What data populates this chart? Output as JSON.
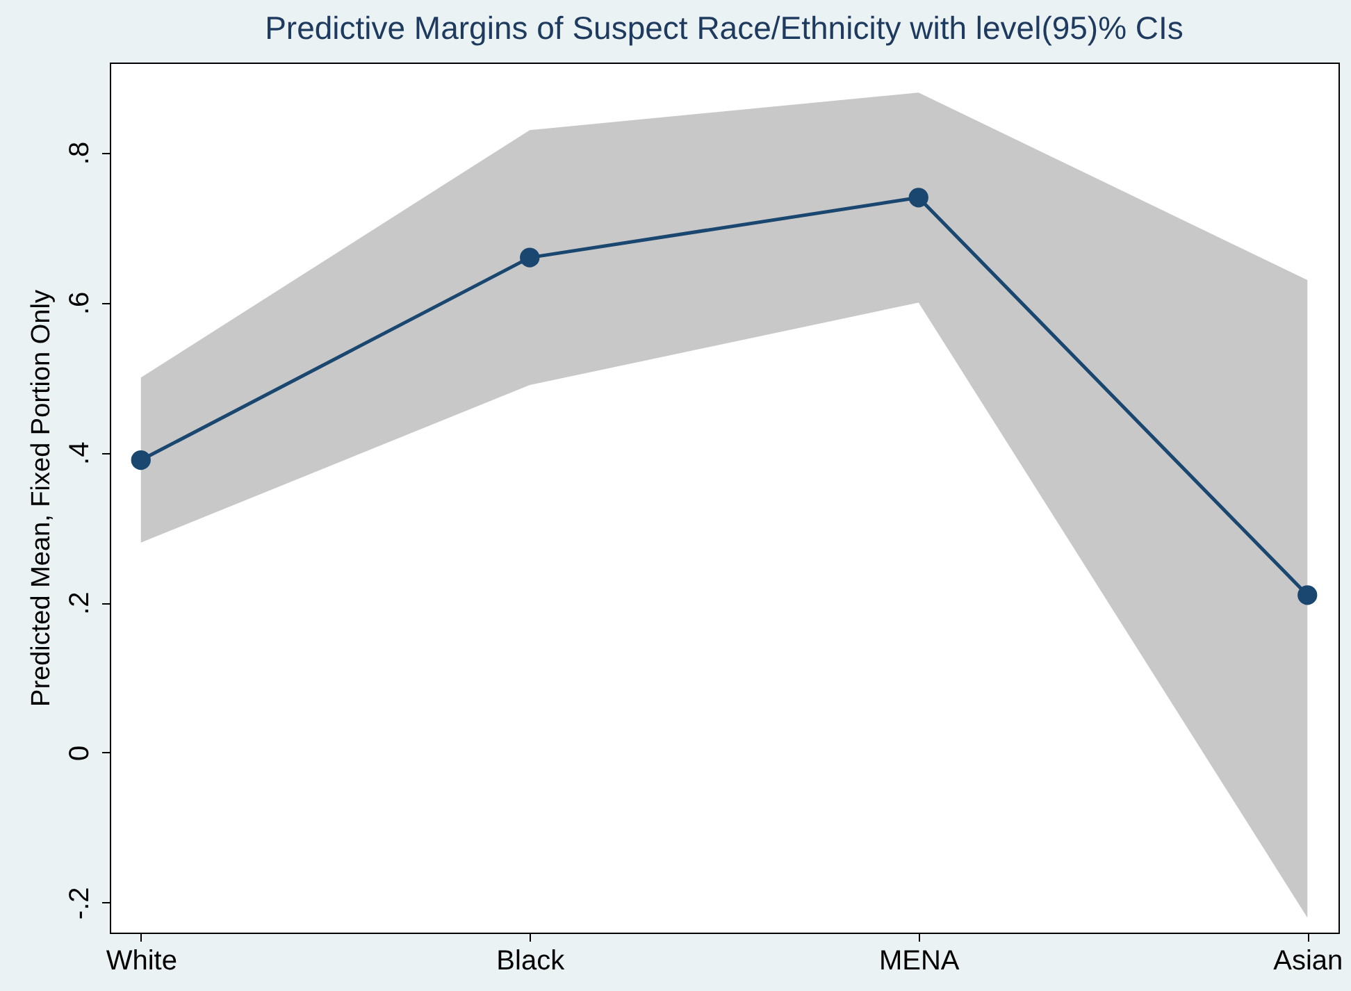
{
  "chart_data": {
    "type": "line",
    "title": "Predictive Margins of Suspect Race/Ethnicity with level(95)% CIs",
    "ylabel": "Predicted Mean, Fixed Portion Only",
    "categories": [
      "White",
      "Black",
      "MENA",
      "Asian"
    ],
    "series": [
      {
        "color": "#1a476f",
        "values": [
          0.39,
          0.66,
          0.74,
          0.21
        ],
        "lower": [
          0.28,
          0.49,
          0.6,
          -0.22
        ],
        "upper": [
          0.5,
          0.83,
          0.88,
          0.63
        ]
      }
    ],
    "ylim": [
      -0.24,
      0.92
    ],
    "yticks": [
      {
        "value": -0.2,
        "label": "-.2"
      },
      {
        "value": 0,
        "label": "0"
      },
      {
        "value": 0.2,
        "label": ".2"
      },
      {
        "value": 0.4,
        "label": ".4"
      },
      {
        "value": 0.6,
        "label": ".6"
      },
      {
        "value": 0.8,
        "label": ".8"
      }
    ],
    "grid": false,
    "marker": "circle",
    "line_style": "solid",
    "legend": false
  }
}
